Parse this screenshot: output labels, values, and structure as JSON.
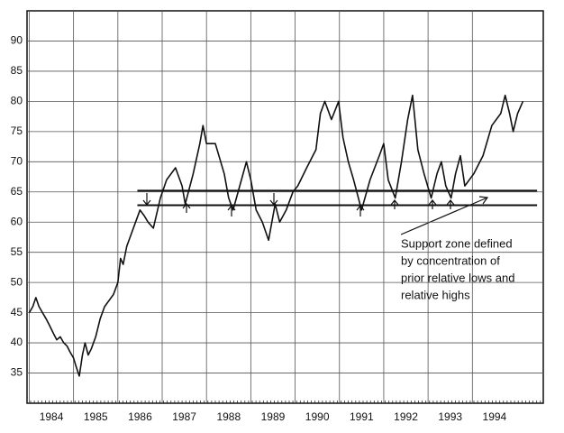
{
  "chart_data": {
    "type": "line",
    "x": [
      1984.0,
      1984.08,
      1984.15,
      1984.22,
      1984.3,
      1984.38,
      1984.45,
      1984.55,
      1984.62,
      1984.7,
      1984.78,
      1984.85,
      1984.92,
      1985.0,
      1985.06,
      1985.13,
      1985.2,
      1985.26,
      1985.33,
      1985.4,
      1985.5,
      1985.6,
      1985.7,
      1985.8,
      1985.9,
      1986.0,
      1986.06,
      1986.12,
      1986.2,
      1986.3,
      1986.4,
      1986.5,
      1986.6,
      1986.68,
      1986.8,
      1986.96,
      1987.1,
      1987.3,
      1987.45,
      1987.52,
      1987.7,
      1987.85,
      1987.92,
      1988.0,
      1988.2,
      1988.4,
      1988.5,
      1988.6,
      1988.75,
      1988.9,
      1989.0,
      1989.12,
      1989.26,
      1989.4,
      1989.55,
      1989.65,
      1989.8,
      1989.95,
      1990.06,
      1990.26,
      1990.47,
      1990.57,
      1990.67,
      1990.82,
      1990.98,
      1991.08,
      1991.2,
      1991.32,
      1991.5,
      1991.69,
      1991.9,
      1992.0,
      1992.1,
      1992.26,
      1992.4,
      1992.54,
      1992.65,
      1992.77,
      1992.91,
      1993.07,
      1993.2,
      1993.3,
      1993.4,
      1993.52,
      1993.62,
      1993.73,
      1993.83,
      1994.03,
      1994.24,
      1994.44,
      1994.64,
      1994.74,
      1994.84,
      1994.92,
      1995.02,
      1995.14
    ],
    "values": [
      45,
      46,
      47.5,
      46,
      45,
      44,
      43,
      41.5,
      40.5,
      41,
      40,
      39.5,
      38.5,
      37.5,
      36,
      34.5,
      38,
      40,
      38,
      39,
      41,
      44,
      46,
      47,
      48,
      50,
      54,
      53,
      56,
      58,
      60,
      62,
      61,
      60,
      59,
      64,
      67,
      69,
      66,
      63,
      68,
      73,
      76,
      73,
      73,
      68,
      64,
      62,
      66,
      70,
      67,
      62,
      60,
      57,
      63,
      60,
      62,
      65,
      66,
      69,
      72,
      78,
      80,
      77,
      80,
      74,
      70,
      67,
      62,
      67,
      71,
      73,
      67,
      64,
      70,
      77,
      81,
      72,
      68,
      64,
      68,
      70,
      66,
      64,
      68,
      71,
      66,
      68,
      71,
      76,
      78,
      81,
      78,
      75,
      78,
      80
    ],
    "color": "#111111",
    "xlim": [
      1983.95,
      1995.6
    ],
    "ylim": [
      30,
      95
    ],
    "xticks": [
      1984,
      1985,
      1986,
      1987,
      1988,
      1989,
      1990,
      1991,
      1992,
      1993,
      1994
    ],
    "yticks": [
      35,
      40,
      45,
      50,
      55,
      60,
      65,
      70,
      75,
      80,
      85,
      90
    ],
    "grid": true,
    "support_lines": [
      {
        "y": 65.2,
        "x": [
          1986.44,
          1995.46
        ]
      },
      {
        "y": 62.8,
        "x": [
          1986.44,
          1995.46
        ]
      }
    ],
    "annotation": [
      "Support zone defined",
      "by concentration of",
      "prior relative lows and",
      "relative highs"
    ]
  }
}
